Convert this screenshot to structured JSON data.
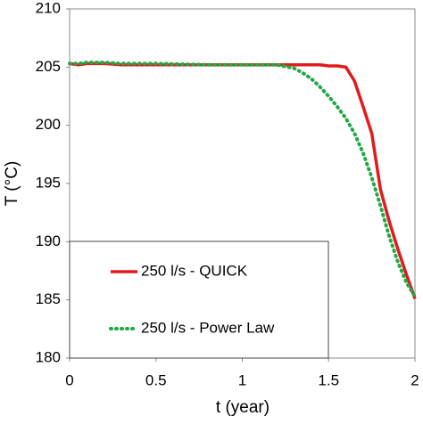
{
  "chart_data": {
    "type": "line",
    "xlabel": "t (year)",
    "ylabel": "T (°C)",
    "x": [
      0,
      0.05,
      0.1,
      0.2,
      0.3,
      0.5,
      0.8,
      1.0,
      1.2,
      1.3,
      1.35,
      1.4,
      1.45,
      1.5,
      1.55,
      1.6,
      1.65,
      1.7,
      1.75,
      1.8,
      1.85,
      1.9,
      1.95,
      2.0
    ],
    "series": [
      {
        "name": "250 l/s - QUICK",
        "color": "#e31a1c",
        "dash": "solid",
        "values": [
          205.3,
          205.2,
          205.3,
          205.3,
          205.2,
          205.2,
          205.2,
          205.2,
          205.2,
          205.2,
          205.2,
          205.2,
          205.2,
          205.1,
          205.1,
          205.0,
          203.8,
          201.6,
          199.3,
          194.5,
          191.8,
          189.4,
          187.2,
          185.1
        ]
      },
      {
        "name": "250 l/s - Power Law",
        "color": "#22a845",
        "dash": "dotted",
        "values": [
          205.3,
          205.3,
          205.4,
          205.4,
          205.3,
          205.3,
          205.2,
          205.2,
          205.2,
          204.9,
          204.5,
          204.0,
          203.3,
          202.5,
          201.6,
          200.6,
          199.3,
          197.6,
          195.5,
          193.1,
          190.5,
          188.3,
          186.5,
          185.3
        ]
      }
    ],
    "xlim": [
      0,
      2
    ],
    "xticks": [
      0,
      0.5,
      1,
      1.5,
      2
    ],
    "ylim": [
      180,
      210
    ],
    "yticks": [
      180,
      185,
      190,
      195,
      200,
      205,
      210
    ],
    "legend": "lower left",
    "grid": false
  }
}
